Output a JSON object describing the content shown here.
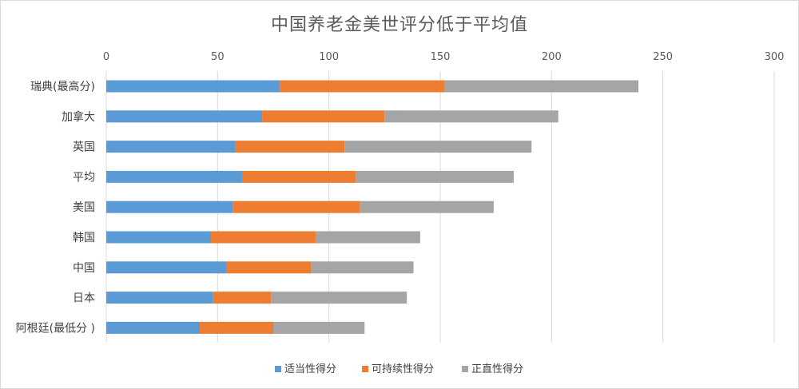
{
  "chart_data": {
    "type": "bar",
    "orientation": "horizontal",
    "stacked": true,
    "title": "中国养老金美世评分低于平均值",
    "categories": [
      "瑞典(最高分)",
      "加拿大",
      "英国",
      "平均",
      "美国",
      "韩国",
      "中国",
      "日本",
      "阿根廷(最低分 )"
    ],
    "series": [
      {
        "name": "适当性得分",
        "color": "#5b9bd5",
        "values": [
          78,
          70,
          58,
          61,
          57,
          47,
          54,
          48,
          42
        ]
      },
      {
        "name": "可持续性得分",
        "color": "#ed7d31",
        "values": [
          74,
          55,
          49,
          51,
          57,
          47,
          38,
          26,
          33
        ]
      },
      {
        "name": "正直性得分",
        "color": "#a5a5a5",
        "values": [
          87,
          78,
          84,
          71,
          60,
          47,
          46,
          61,
          41
        ]
      }
    ],
    "xlim": [
      0,
      300
    ],
    "xticks": [
      0,
      50,
      100,
      150,
      200,
      250,
      300
    ],
    "xtick_labels": [
      "0",
      "50",
      "100",
      "150",
      "200",
      "250",
      "300"
    ],
    "x_axis_position": "top",
    "grid": true,
    "legend_position": "bottom"
  },
  "colors": {
    "grid": "#d9d9d9",
    "border": "#d9d9d9",
    "text": "#595959"
  }
}
